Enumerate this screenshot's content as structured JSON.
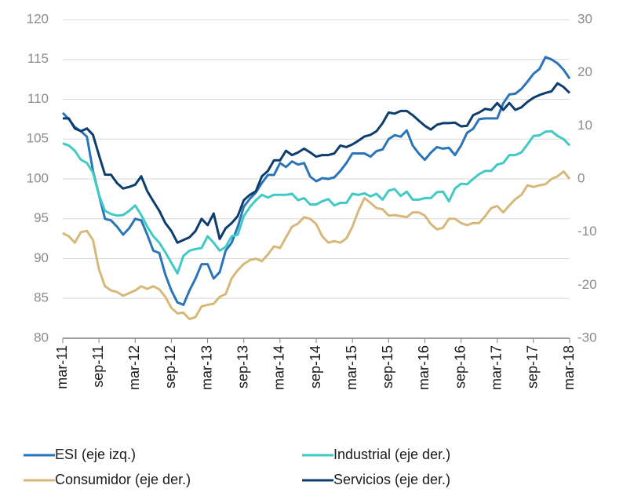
{
  "chart_data": {
    "type": "line",
    "categories": [
      "mar-11",
      null,
      null,
      null,
      null,
      null,
      "sep-11",
      null,
      null,
      null,
      null,
      null,
      "mar-12",
      null,
      null,
      null,
      null,
      null,
      "sep-12",
      null,
      null,
      null,
      null,
      null,
      "mar-13",
      null,
      null,
      null,
      null,
      null,
      "sep-13",
      null,
      null,
      null,
      null,
      null,
      "mar-14",
      null,
      null,
      null,
      null,
      null,
      "sep-14",
      null,
      null,
      null,
      null,
      null,
      "mar-15",
      null,
      null,
      null,
      null,
      null,
      "sep-15",
      null,
      null,
      null,
      null,
      null,
      "mar-16",
      null,
      null,
      null,
      null,
      null,
      "sep-16",
      null,
      null,
      null,
      null,
      null,
      "mar-17",
      null,
      null,
      null,
      null,
      null,
      "sep-17",
      null,
      null,
      null,
      null,
      null,
      "mar-18"
    ],
    "series": [
      {
        "name": "ESI (eje izq.)",
        "color": "#2a74b8",
        "axis": "y",
        "values": [
          108.3,
          107.5,
          106.5,
          106,
          105.3,
          101,
          98,
          95,
          94.8,
          94,
          93,
          93.8,
          95,
          94.8,
          93,
          91,
          90.7,
          88,
          86,
          84.5,
          84.2,
          86,
          87.5,
          89.3,
          89.3,
          87.5,
          88.3,
          91,
          92,
          94,
          96.5,
          97.5,
          98.3,
          99.5,
          100.5,
          100.5,
          102,
          101.5,
          102.2,
          101.8,
          102,
          100.3,
          99.7,
          100.1,
          100,
          100.2,
          101,
          102,
          103.2,
          103.2,
          103.2,
          102.8,
          103.5,
          103.7,
          105,
          105.5,
          105.3,
          106.1,
          104.2,
          103.2,
          102.4,
          103.3,
          104,
          103.8,
          103.9,
          103,
          104.2,
          105.8,
          106.3,
          107.5,
          107.6,
          107.6,
          107.6,
          109.5,
          110.6,
          110.7,
          111.3,
          112.2,
          113.2,
          113.8,
          115.3,
          115,
          114.5,
          113.7,
          112.6
        ]
      },
      {
        "name": "Industrial (eje der.)",
        "color": "#40c9c5",
        "axis": "y2",
        "values": [
          6.7,
          6.3,
          5.3,
          3.6,
          3,
          1.2,
          -3,
          -6,
          -6.6,
          -6.9,
          -6.8,
          -6,
          -5,
          -6.8,
          -9,
          -10.8,
          -12,
          -13.8,
          -15.8,
          -17.8,
          -14.5,
          -13.5,
          -13.2,
          -13,
          -10.8,
          -12,
          -13.5,
          -12.8,
          -10.8,
          -10.5,
          -7,
          -5.3,
          -4,
          -3,
          -3.5,
          -3,
          -3,
          -3,
          -2.8,
          -4,
          -3.6,
          -4.8,
          -4.8,
          -4.2,
          -3.8,
          -5,
          -4.5,
          -4.5,
          -2.8,
          -3,
          -2.7,
          -3.3,
          -2.8,
          -3.9,
          -2.2,
          -1.9,
          -3.2,
          -2.4,
          -3.9,
          -3.9,
          -3.6,
          -3.6,
          -2.5,
          -2.4,
          -4.2,
          -1.8,
          -0.9,
          -1,
          0,
          0.9,
          1.5,
          1.5,
          2.7,
          3,
          4.5,
          4.5,
          5,
          6.5,
          8.1,
          8.2,
          8.9,
          9,
          8.1,
          7.5,
          6.3
        ]
      },
      {
        "name": "Consumidor (eje der.)",
        "color": "#d6b97a",
        "axis": "y2",
        "values": [
          -10.2,
          -10.8,
          -12,
          -10,
          -9.8,
          -11.5,
          -17,
          -20.2,
          -21,
          -21.3,
          -22,
          -21.5,
          -21,
          -20.2,
          -20.7,
          -20.2,
          -20.8,
          -22.2,
          -24.3,
          -25.3,
          -25.2,
          -26.4,
          -26,
          -24,
          -23.7,
          -23.5,
          -22.2,
          -21.7,
          -18.7,
          -17.2,
          -16,
          -15.3,
          -15,
          -15.5,
          -14.2,
          -12.7,
          -13,
          -11,
          -9,
          -8.4,
          -7.2,
          -7.5,
          -8.5,
          -10.8,
          -12,
          -11.7,
          -12,
          -11.2,
          -9,
          -6,
          -3.6,
          -4.5,
          -5.5,
          -5.7,
          -6.9,
          -6.8,
          -7,
          -7.2,
          -6.3,
          -6.3,
          -6.9,
          -8.5,
          -9.5,
          -9.2,
          -7.5,
          -7.5,
          -8.3,
          -8.7,
          -8.3,
          -8.3,
          -7,
          -5.5,
          -5.1,
          -6.3,
          -5,
          -3.8,
          -3,
          -1.2,
          -1.5,
          -1.2,
          -1,
          0,
          0.5,
          1.4,
          0
        ]
      },
      {
        "name": "Servicios (eje der.)",
        "color": "#0d3d6e",
        "axis": "y2",
        "values": [
          11.4,
          11.4,
          9.5,
          9,
          9.5,
          8.3,
          4.5,
          0.8,
          0.8,
          -0.8,
          -1.8,
          -1.5,
          -1.1,
          0.5,
          -2.3,
          -4.2,
          -6,
          -8.3,
          -9.8,
          -12,
          -11.5,
          -11,
          -9.8,
          -7.5,
          -8.7,
          -6.5,
          -11.3,
          -9.3,
          -8.3,
          -7,
          -4,
          -3,
          -2.3,
          0.5,
          1.5,
          3.5,
          3.5,
          5.3,
          4.5,
          5,
          5.7,
          5,
          4.2,
          4.5,
          4.5,
          4.8,
          6.3,
          6,
          6.5,
          7.2,
          8,
          8.3,
          9,
          10.5,
          12.5,
          12.3,
          12.8,
          12.8,
          12,
          11,
          10,
          9.3,
          10.2,
          10.5,
          10.5,
          10.6,
          9.9,
          10,
          12,
          12.5,
          13.2,
          13,
          14.3,
          13,
          14.3,
          13,
          13.5,
          14.5,
          15.3,
          15.8,
          16.2,
          16.5,
          18,
          17.3,
          16.2
        ]
      }
    ],
    "ylim": [
      80,
      120
    ],
    "yticks": [
      80,
      85,
      90,
      95,
      100,
      105,
      110,
      115,
      120
    ],
    "y2lim": [
      -30,
      30
    ],
    "y2ticks": [
      -30,
      -20,
      -10,
      0,
      10,
      20,
      30
    ],
    "grid": true,
    "legend": "bottom"
  }
}
